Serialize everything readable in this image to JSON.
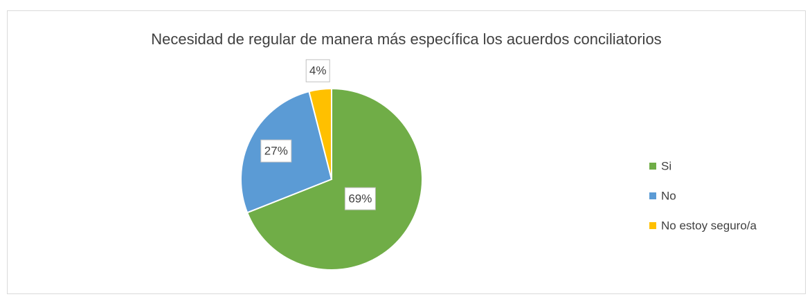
{
  "chart_data": {
    "type": "pie",
    "title": "Necesidad de regular de manera más específica los acuerdos conciliatorios",
    "categories": [
      "Si",
      "No",
      "No estoy seguro/a"
    ],
    "values": [
      69,
      27,
      4
    ],
    "value_labels": [
      "69%",
      "27%",
      "4%"
    ],
    "colors": [
      "#70ad47",
      "#5b9bd5",
      "#ffc000"
    ],
    "legend": "right"
  }
}
